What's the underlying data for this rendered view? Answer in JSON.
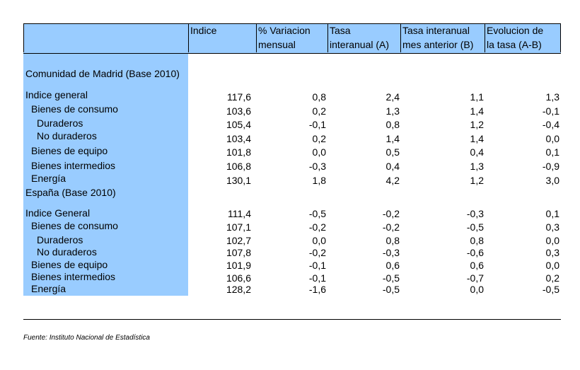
{
  "columns": [
    {
      "line1": "Indice",
      "line2": ""
    },
    {
      "line1": "% Variacion",
      "line2": "mensual"
    },
    {
      "line1": "Tasa",
      "line2": "interanual (A)"
    },
    {
      "line1": "Tasa interanual",
      "line2": "mes anterior (B)"
    },
    {
      "line1": "Evolucion de",
      "line2": "la tasa (A-B)"
    }
  ],
  "sections": [
    {
      "title": "Comunidad de Madrid (Base 2010)",
      "rows": [
        {
          "label": "Indice general",
          "values": [
            "117,6",
            "0,8",
            "2,4",
            "1,1",
            "1,3"
          ]
        },
        {
          "label": "Bienes de consumo",
          "values": [
            "103,6",
            "0,2",
            "1,3",
            "1,4",
            "-0,1"
          ]
        },
        {
          "label": "Duraderos",
          "values": [
            "105,4",
            "-0,1",
            "0,8",
            "1,2",
            "-0,4"
          ]
        },
        {
          "label": "No duraderos",
          "values": [
            "103,4",
            "0,2",
            "1,4",
            "1,4",
            "0,0"
          ]
        },
        {
          "label": "Bienes de equipo",
          "values": [
            "101,8",
            "0,0",
            "0,5",
            "0,4",
            "0,1"
          ]
        },
        {
          "label": "Bienes intermedios",
          "values": [
            "106,8",
            "-0,3",
            "0,4",
            "1,3",
            "-0,9"
          ]
        },
        {
          "label": "Energía",
          "values": [
            "130,1",
            "1,8",
            "4,2",
            "1,2",
            "3,0"
          ]
        }
      ]
    },
    {
      "title": "España (Base 2010)",
      "rows": [
        {
          "label": "Indice General",
          "values": [
            "111,4",
            "-0,5",
            "-0,2",
            "-0,3",
            "0,1"
          ]
        },
        {
          "label": "Bienes de consumo",
          "values": [
            "107,1",
            "-0,2",
            "-0,2",
            "-0,5",
            "0,3"
          ]
        },
        {
          "label": "Duraderos",
          "values": [
            "102,7",
            "0,0",
            "0,8",
            "0,8",
            "0,0"
          ]
        },
        {
          "label": "No duraderos",
          "values": [
            "107,8",
            "-0,2",
            "-0,3",
            "-0,6",
            "0,3"
          ]
        },
        {
          "label": "Bienes de equipo",
          "values": [
            "101,9",
            "-0,1",
            "0,6",
            "0,6",
            "0,0"
          ]
        },
        {
          "label": "Bienes intermedios",
          "values": [
            "106,6",
            "-0,1",
            "-0,5",
            "-0,7",
            "0,2"
          ]
        },
        {
          "label": "Energía",
          "values": [
            "128,2",
            "-1,6",
            "-0,5",
            "0,0",
            "-0,5"
          ]
        }
      ]
    }
  ],
  "source": "Fuente: Instituto Nacional de Estadística",
  "colors": {
    "header_fill": "#99ccff",
    "label_fill": "#99ccff"
  }
}
